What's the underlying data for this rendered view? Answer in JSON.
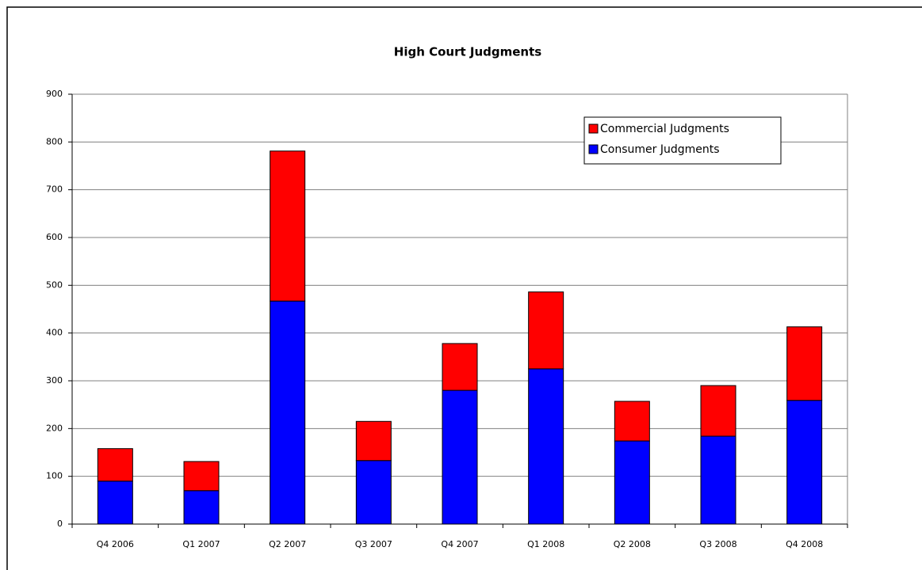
{
  "chart_data": {
    "type": "bar",
    "stacked": true,
    "title": "High Court Judgments",
    "categories": [
      "Q4 2006",
      "Q1 2007",
      "Q2 2007",
      "Q3 2007",
      "Q4 2007",
      "Q1 2008",
      "Q2 2008",
      "Q3 2008",
      "Q4 2008"
    ],
    "series": [
      {
        "name": "Consumer Judgments",
        "color": "#0000ff",
        "values": [
          90,
          70,
          467,
          133,
          280,
          325,
          174,
          184,
          259
        ]
      },
      {
        "name": "Commercial Judgments",
        "color": "#ff0000",
        "values": [
          68,
          61,
          314,
          82,
          98,
          161,
          83,
          106,
          154
        ]
      }
    ],
    "ylim": [
      0,
      900
    ],
    "yticks": [
      0,
      100,
      200,
      300,
      400,
      500,
      600,
      700,
      800,
      900
    ],
    "grid": true,
    "legend": "upper right"
  }
}
